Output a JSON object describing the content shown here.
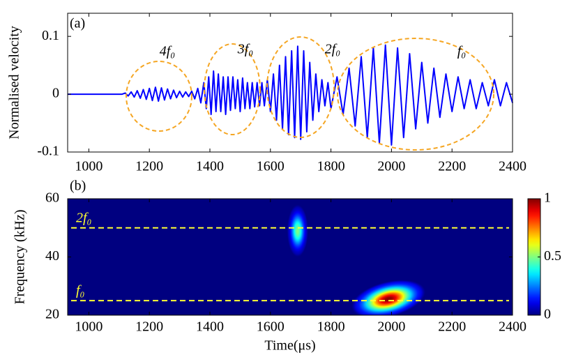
{
  "chart_data": [
    {
      "type": "line",
      "panel_label": "(a)",
      "ylabel": "Normalised velocity",
      "color": "#0000ff",
      "x": [
        930,
        1110,
        1120,
        1130,
        1140,
        1150,
        1160,
        1170,
        1180,
        1190,
        1200,
        1210,
        1220,
        1230,
        1240,
        1250,
        1260,
        1270,
        1280,
        1290,
        1300,
        1310,
        1320,
        1330,
        1340,
        1350,
        1360,
        1370,
        1380,
        1388,
        1396,
        1404,
        1412,
        1420,
        1428,
        1436,
        1444,
        1452,
        1460,
        1468,
        1476,
        1484,
        1492,
        1500,
        1508,
        1516,
        1524,
        1532,
        1540,
        1548,
        1556,
        1564,
        1572,
        1580,
        1590,
        1600,
        1610,
        1620,
        1630,
        1640,
        1650,
        1660,
        1670,
        1680,
        1690,
        1700,
        1710,
        1720,
        1730,
        1740,
        1750,
        1760,
        1770,
        1780,
        1790,
        1800,
        1820,
        1840,
        1860,
        1880,
        1900,
        1920,
        1940,
        1960,
        1980,
        2000,
        2020,
        2040,
        2060,
        2080,
        2100,
        2120,
        2140,
        2160,
        2180,
        2200,
        2220,
        2240,
        2260,
        2280,
        2300,
        2320,
        2340,
        2360,
        2380,
        2400
      ],
      "values": [
        0,
        0,
        0.002,
        -0.003,
        0.004,
        -0.005,
        0.006,
        -0.007,
        0.008,
        -0.009,
        0.01,
        -0.011,
        0.012,
        -0.012,
        0.011,
        -0.01,
        0.009,
        -0.008,
        0.007,
        -0.006,
        0.005,
        -0.005,
        0.004,
        -0.004,
        0.005,
        -0.008,
        0.01,
        -0.015,
        0.02,
        -0.025,
        0.03,
        -0.035,
        0.04,
        -0.03,
        0.035,
        -0.03,
        0.03,
        -0.035,
        0.03,
        -0.028,
        0.03,
        -0.025,
        0.025,
        -0.03,
        0.028,
        -0.025,
        0.02,
        -0.025,
        0.02,
        -0.022,
        0.02,
        -0.02,
        0.02,
        -0.02,
        0.025,
        -0.03,
        0.035,
        -0.045,
        0.05,
        -0.06,
        0.065,
        -0.07,
        0.075,
        -0.075,
        0.083,
        -0.078,
        0.075,
        -0.065,
        0.055,
        -0.045,
        0.035,
        -0.03,
        0.025,
        -0.02,
        0.02,
        -0.025,
        0.03,
        -0.035,
        0.045,
        -0.055,
        0.065,
        -0.075,
        0.08,
        -0.085,
        0.085,
        -0.088,
        0.08,
        -0.075,
        0.07,
        -0.06,
        0.055,
        -0.05,
        0.045,
        -0.04,
        0.035,
        -0.03,
        0.03,
        -0.025,
        0.025,
        -0.025,
        0.02,
        -0.02,
        0.025,
        -0.02,
        0.02,
        -0.015
      ],
      "xlim": [
        930,
        2400
      ],
      "xticks": [
        1000,
        1200,
        1400,
        1600,
        1800,
        2000,
        2200,
        2400
      ],
      "ylim": [
        -0.1,
        0.14
      ],
      "yticks": [
        -0.1,
        0,
        0.1
      ],
      "annotations": [
        "4f₀",
        "3f₀",
        "2f₀",
        "f₀"
      ],
      "annotation_color": "#f5a623"
    },
    {
      "type": "heatmap",
      "panel_label": "(b)",
      "xlabel": "Time(μs)",
      "ylabel": "Frequency (kHz)",
      "xlim": [
        930,
        2400
      ],
      "xticks": [
        1000,
        1200,
        1400,
        1600,
        1800,
        2000,
        2200,
        2400
      ],
      "ylim": [
        20,
        60
      ],
      "yticks": [
        20,
        40,
        60
      ],
      "peaks": [
        {
          "time": 1690,
          "frequency": 49,
          "value": 0.5,
          "duration": 70,
          "bandwidth": 18
        },
        {
          "time": 1990,
          "frequency": 25.5,
          "value": 1,
          "duration": 250,
          "bandwidth": 12
        }
      ],
      "colormap": "jet",
      "clim": [
        0,
        1
      ],
      "cticks": [
        0,
        0.5,
        1
      ],
      "reference_lines": [
        {
          "value": 50,
          "label": "2f₀"
        },
        {
          "value": 25,
          "label": "f₀"
        }
      ],
      "reference_color": "#ffff33"
    }
  ]
}
